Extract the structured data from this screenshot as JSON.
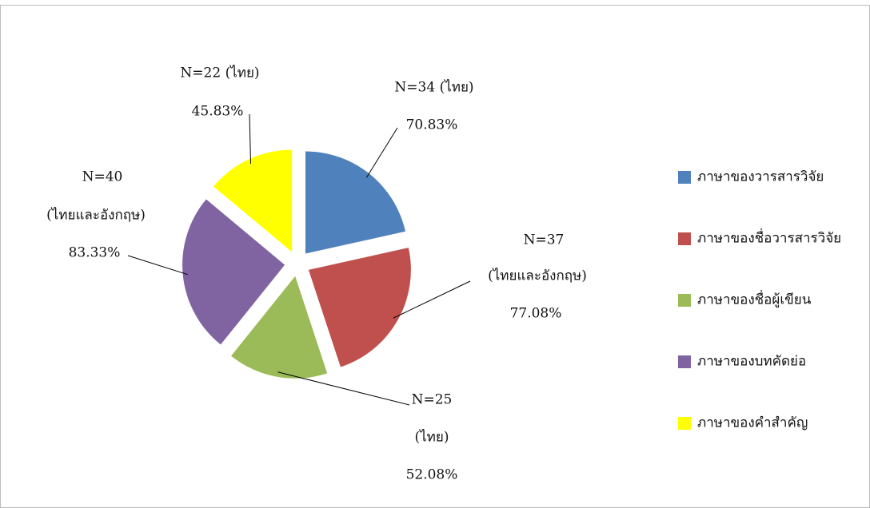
{
  "chart_data": {
    "type": "pie",
    "categories": [
      "ภาษาของวารสารวิจัย",
      "ภาษาของชื่อวารสารวิจัย",
      "ภาษาของชื่อผู้เขียน",
      "ภาษาของบทคัดย่อ",
      "ภาษาของคำสำคัญ"
    ],
    "values": [
      70.83,
      77.08,
      52.08,
      83.33,
      45.83
    ],
    "value_labels": [
      "70.83%",
      "77.08%",
      "52.08%",
      "83.33%",
      "45.83%"
    ],
    "n_labels": [
      [
        "N=34 (ไทย)"
      ],
      [
        "N=37",
        "(ไทยและอังกฤษ)"
      ],
      [
        "N=25",
        "(ไทย)"
      ],
      [
        "N=40",
        "(ไทยและอังกฤษ)"
      ],
      [
        "N=22 (ไทย)"
      ]
    ],
    "colors": [
      "#4f81bd",
      "#c0504d",
      "#9bbb59",
      "#8064a2",
      "#ffff00"
    ],
    "legend": "right"
  }
}
